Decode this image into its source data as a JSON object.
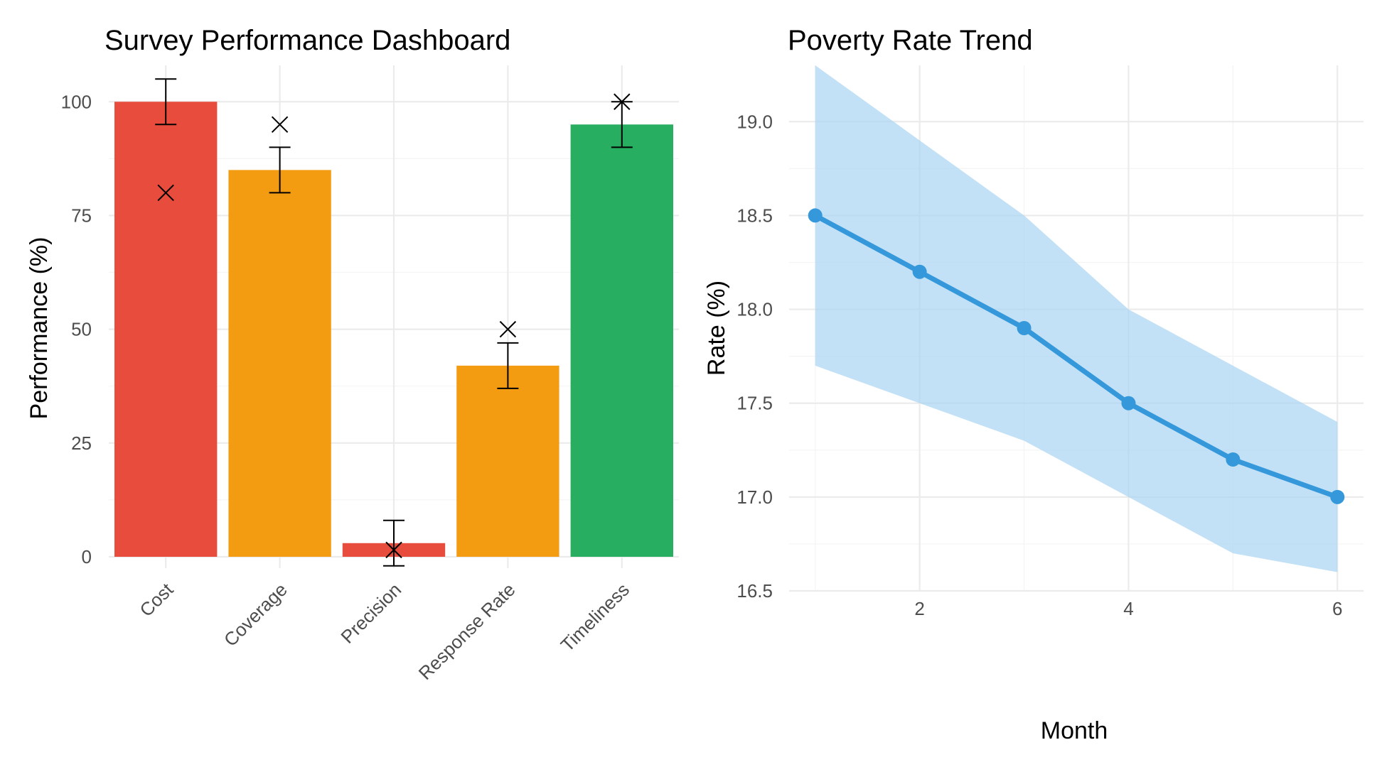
{
  "chart_data": [
    {
      "type": "bar",
      "title": "Survey Performance Dashboard",
      "xlabel": "",
      "ylabel": "Performance (%)",
      "categories": [
        "Cost",
        "Coverage",
        "Precision",
        "Response Rate",
        "Timeliness"
      ],
      "values": [
        100,
        85,
        3,
        42,
        95
      ],
      "error_low": [
        95,
        80,
        -2,
        37,
        90
      ],
      "error_high": [
        105,
        90,
        8,
        47,
        100
      ],
      "targets": [
        80,
        95,
        1.5,
        50,
        100
      ],
      "bar_colors": [
        "#e74c3c",
        "#f39c12",
        "#e74c3c",
        "#f39c12",
        "#27ae60"
      ],
      "ylim": [
        -2.5,
        108
      ],
      "yticks": [
        0,
        25,
        50,
        75,
        100
      ],
      "grid": true
    },
    {
      "type": "line",
      "title": "Poverty Rate Trend",
      "xlabel": "Month",
      "ylabel": "Rate (%)",
      "x": [
        1,
        2,
        3,
        4,
        5,
        6
      ],
      "y": [
        18.5,
        18.2,
        17.9,
        17.5,
        17.2,
        17.0
      ],
      "ci_low": [
        17.7,
        17.5,
        17.3,
        17.0,
        16.7,
        16.6
      ],
      "ci_high": [
        19.3,
        18.9,
        18.5,
        18.0,
        17.7,
        17.4
      ],
      "xlim": [
        0.75,
        6.25
      ],
      "ylim": [
        16.5,
        19.3
      ],
      "xticks": [
        2,
        4,
        6
      ],
      "yticks": [
        "16.5",
        "17.0",
        "17.5",
        "18.0",
        "18.5",
        "19.0"
      ],
      "line_color": "#3498db",
      "band_color": "#a9d4f2",
      "grid": true
    }
  ]
}
